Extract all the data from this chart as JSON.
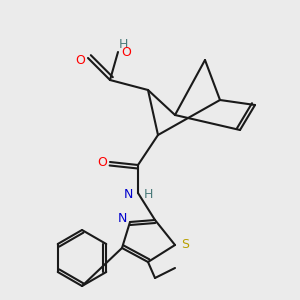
{
  "background_color": "#ebebeb",
  "bond_color": "#1a1a1a",
  "atom_colors": {
    "O": "#ff0000",
    "N": "#0000cd",
    "S": "#b8a000",
    "H_gray": "#4a7a7a",
    "C": "#1a1a1a"
  },
  "figsize": [
    3.0,
    3.0
  ],
  "dpi": 100
}
